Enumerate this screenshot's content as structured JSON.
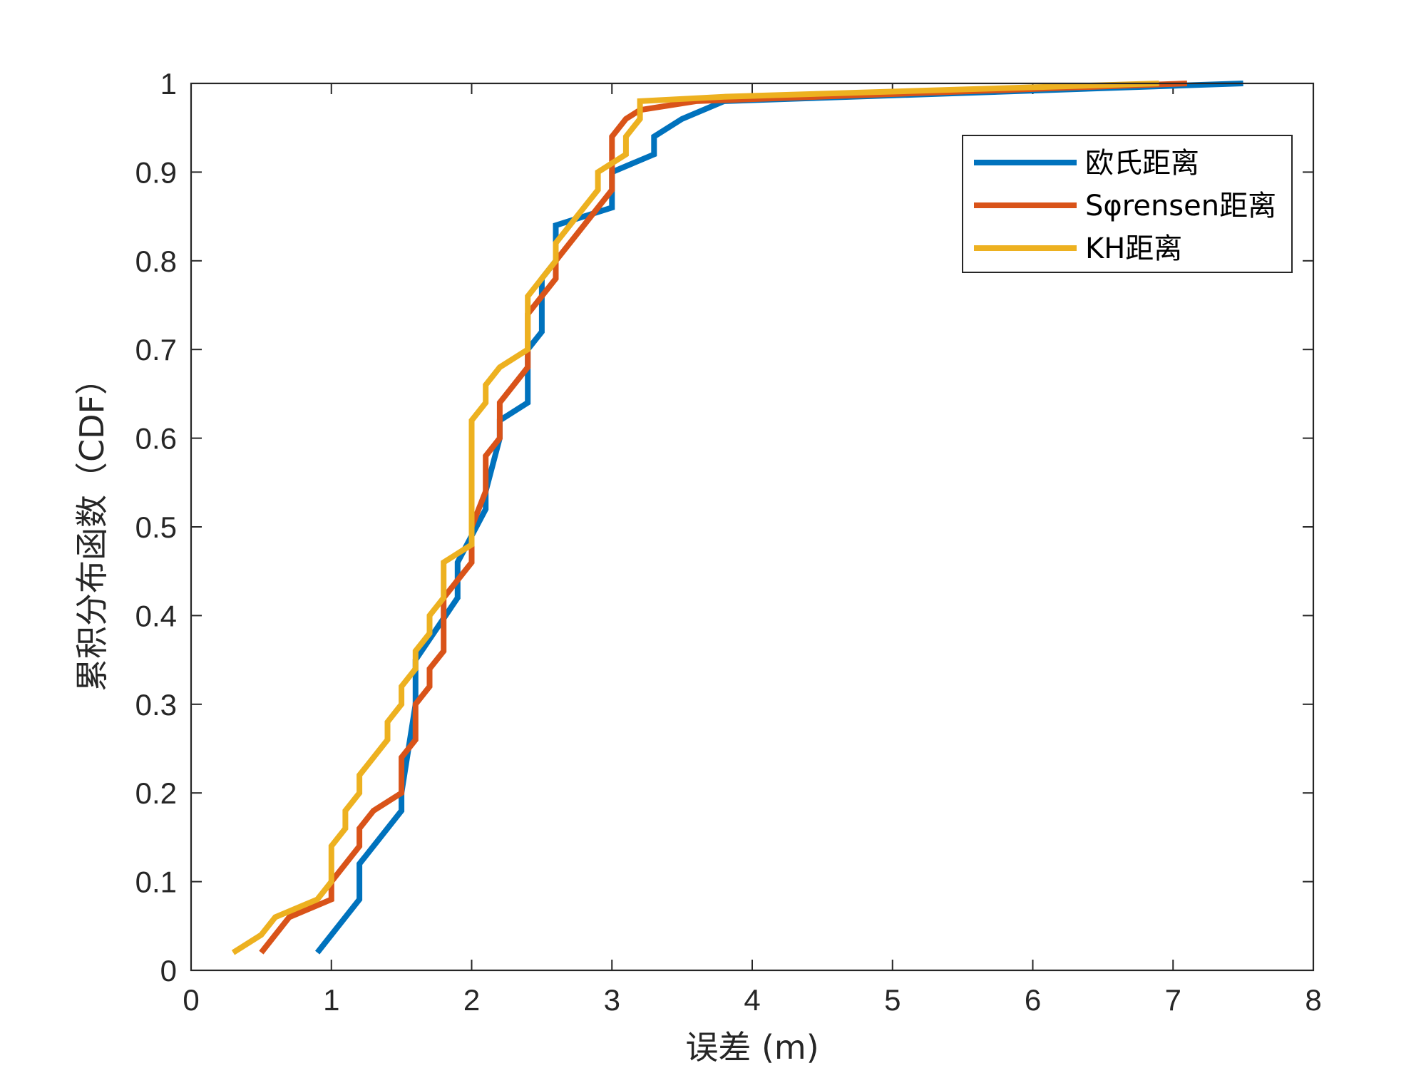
{
  "chart_data": {
    "type": "line",
    "xlabel": "误差 (m)",
    "ylabel": "累积分布函数（CDF）",
    "xlim": [
      0,
      8
    ],
    "ylim": [
      0,
      1
    ],
    "x_ticks": [
      "0",
      "1",
      "2",
      "3",
      "4",
      "5",
      "6",
      "7",
      "8"
    ],
    "y_ticks": [
      "0",
      "0.1",
      "0.2",
      "0.3",
      "0.4",
      "0.5",
      "0.6",
      "0.7",
      "0.8",
      "0.9",
      "1"
    ],
    "grid": false,
    "legend_position": "top-right",
    "series": [
      {
        "name": "欧氏距离",
        "color": "#0072BD",
        "x": [
          0.9,
          1.2,
          1.2,
          1.5,
          1.5,
          1.6,
          1.6,
          1.9,
          1.9,
          2.1,
          2.1,
          2.2,
          2.2,
          2.4,
          2.4,
          2.5,
          2.5,
          2.6,
          2.6,
          3.0,
          3.0,
          3.3,
          3.3,
          3.5,
          3.8,
          7.5
        ],
        "y": [
          0.02,
          0.08,
          0.12,
          0.18,
          0.2,
          0.3,
          0.35,
          0.42,
          0.46,
          0.52,
          0.54,
          0.6,
          0.62,
          0.64,
          0.7,
          0.72,
          0.78,
          0.8,
          0.84,
          0.86,
          0.9,
          0.92,
          0.94,
          0.96,
          0.98,
          1.0
        ]
      },
      {
        "name": "Sφrensen距离",
        "color": "#D95319",
        "x": [
          0.5,
          0.7,
          1.0,
          1.0,
          1.2,
          1.2,
          1.3,
          1.5,
          1.5,
          1.6,
          1.6,
          1.7,
          1.7,
          1.8,
          1.8,
          2.0,
          2.0,
          2.1,
          2.1,
          2.2,
          2.2,
          2.4,
          2.4,
          2.6,
          2.6,
          3.0,
          3.0,
          3.1,
          3.2,
          3.6,
          7.1
        ],
        "y": [
          0.02,
          0.06,
          0.08,
          0.1,
          0.14,
          0.16,
          0.18,
          0.2,
          0.24,
          0.26,
          0.3,
          0.32,
          0.34,
          0.36,
          0.42,
          0.46,
          0.5,
          0.54,
          0.58,
          0.6,
          0.64,
          0.68,
          0.74,
          0.78,
          0.8,
          0.88,
          0.94,
          0.96,
          0.97,
          0.98,
          1.0
        ]
      },
      {
        "name": "KH距离",
        "color": "#EDB120",
        "x": [
          0.3,
          0.5,
          0.6,
          0.9,
          1.0,
          1.0,
          1.1,
          1.1,
          1.2,
          1.2,
          1.4,
          1.4,
          1.5,
          1.5,
          1.6,
          1.6,
          1.7,
          1.7,
          1.8,
          1.8,
          2.0,
          2.0,
          2.1,
          2.1,
          2.2,
          2.4,
          2.4,
          2.6,
          2.6,
          2.9,
          2.9,
          3.1,
          3.1,
          3.2,
          3.2,
          3.8,
          6.9
        ],
        "y": [
          0.02,
          0.04,
          0.06,
          0.08,
          0.1,
          0.14,
          0.16,
          0.18,
          0.2,
          0.22,
          0.26,
          0.28,
          0.3,
          0.32,
          0.34,
          0.36,
          0.38,
          0.4,
          0.42,
          0.46,
          0.48,
          0.62,
          0.64,
          0.66,
          0.68,
          0.7,
          0.76,
          0.8,
          0.82,
          0.88,
          0.9,
          0.92,
          0.94,
          0.96,
          0.98,
          0.985,
          1.0
        ]
      }
    ]
  }
}
